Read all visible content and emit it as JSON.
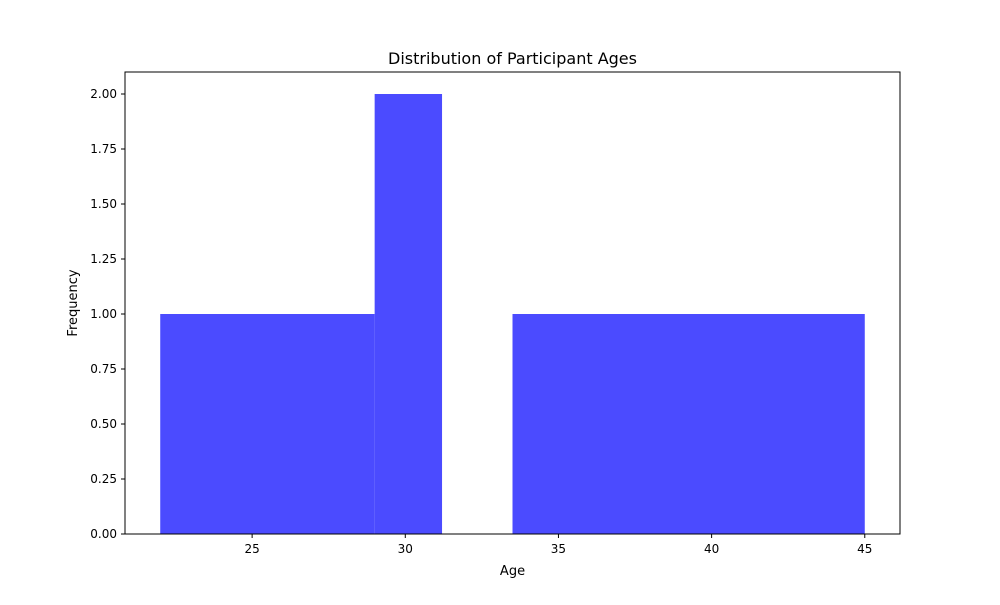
{
  "chart_data": {
    "type": "bar",
    "title": "Distribution of Participant Ages",
    "xlabel": "Age",
    "ylabel": "Frequency",
    "bar_color": "#4b4bff",
    "xlim": [
      20.85,
      46.15
    ],
    "ylim": [
      0,
      2.1
    ],
    "bins": [
      {
        "x0": 22.0,
        "x1": 29.0,
        "count": 1
      },
      {
        "x0": 29.0,
        "x1": 31.2,
        "count": 2
      },
      {
        "x0": 33.5,
        "x1": 45.0,
        "count": 1
      }
    ],
    "x_ticks": [
      {
        "value": 25,
        "label": "25"
      },
      {
        "value": 30,
        "label": "30"
      },
      {
        "value": 35,
        "label": "35"
      },
      {
        "value": 40,
        "label": "40"
      },
      {
        "value": 45,
        "label": "45"
      }
    ],
    "y_ticks": [
      {
        "value": 0.0,
        "label": "0.00"
      },
      {
        "value": 0.25,
        "label": "0.25"
      },
      {
        "value": 0.5,
        "label": "0.50"
      },
      {
        "value": 0.75,
        "label": "0.75"
      },
      {
        "value": 1.0,
        "label": "1.00"
      },
      {
        "value": 1.25,
        "label": "1.25"
      },
      {
        "value": 1.5,
        "label": "1.50"
      },
      {
        "value": 1.75,
        "label": "1.75"
      },
      {
        "value": 2.0,
        "label": "2.00"
      }
    ],
    "grid": false,
    "legend": "none"
  }
}
